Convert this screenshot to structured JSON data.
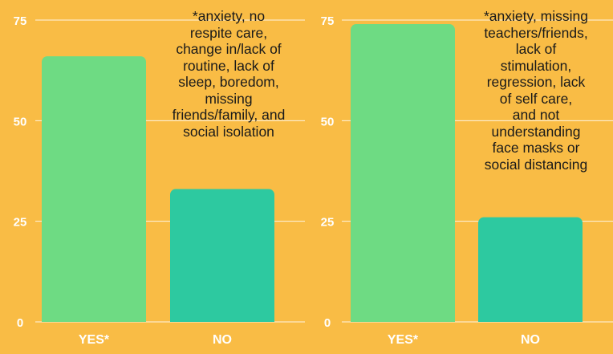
{
  "chart_data": [
    {
      "type": "bar",
      "categories": [
        "YES*",
        "NO"
      ],
      "values": [
        66,
        33
      ],
      "ylim": [
        0,
        75
      ],
      "yticks": [
        0,
        25,
        50,
        75
      ],
      "grid": true,
      "colors": [
        "#6EDB83",
        "#2DC9A0"
      ],
      "annotation": "*anxiety, no\nrespite care,\nchange in/lack of\nroutine, lack of\nsleep, boredom,\nmissing\nfriends/family, and\nsocial isolation"
    },
    {
      "type": "bar",
      "categories": [
        "YES*",
        "NO"
      ],
      "values": [
        74,
        26
      ],
      "ylim": [
        0,
        75
      ],
      "yticks": [
        0,
        25,
        50,
        75
      ],
      "grid": true,
      "colors": [
        "#6EDB83",
        "#2DC9A0"
      ],
      "annotation": "*anxiety, missing\nteachers/friends,\nlack of\nstimulation,\nregression, lack\nof self care,\nand not\nunderstanding\nface masks or\nsocial distancing"
    }
  ]
}
